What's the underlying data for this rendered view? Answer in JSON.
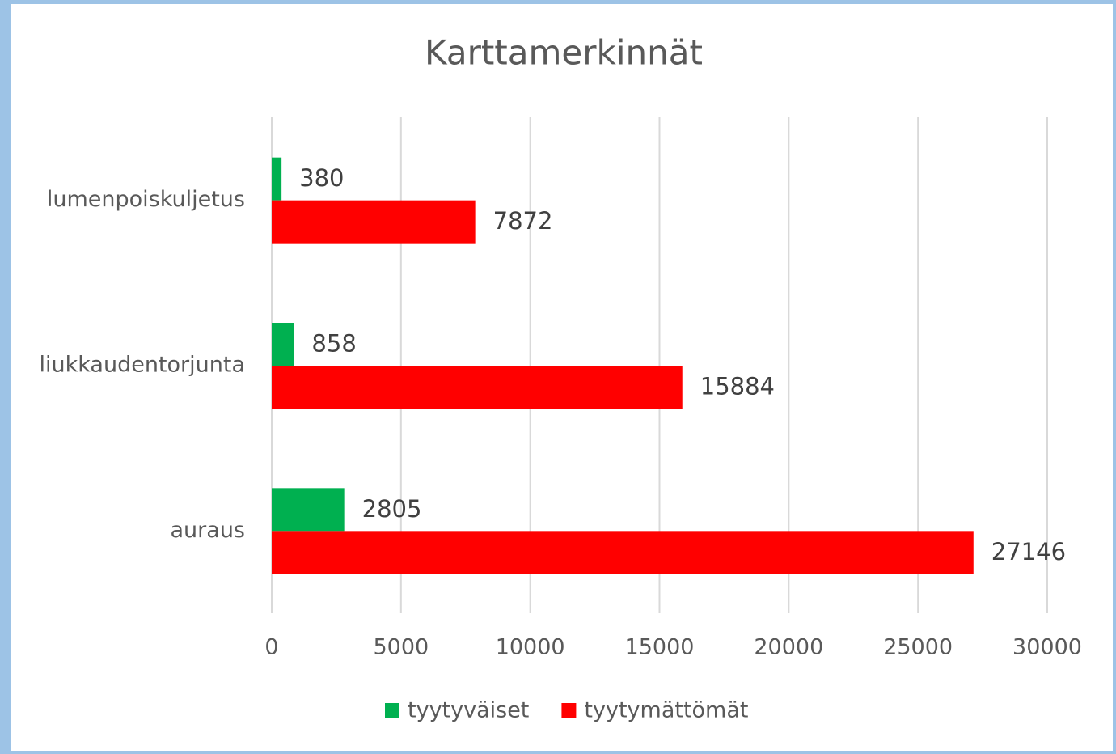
{
  "chart_data": {
    "type": "bar",
    "orientation": "horizontal",
    "title": "Karttamerkinnät",
    "categories": [
      "lumenpoiskuljetus",
      "liukkaudentorjunta",
      "auraus"
    ],
    "series": [
      {
        "name": "tyytyväiset",
        "color": "#00b050",
        "values": [
          380,
          858,
          2805
        ]
      },
      {
        "name": "tyytymättömät",
        "color": "#ff0000",
        "values": [
          7872,
          15884,
          27146
        ]
      }
    ],
    "xlim": [
      0,
      30000
    ],
    "xticks": [
      0,
      5000,
      10000,
      15000,
      20000,
      25000,
      30000
    ],
    "grid": true,
    "legend": "bottom"
  }
}
